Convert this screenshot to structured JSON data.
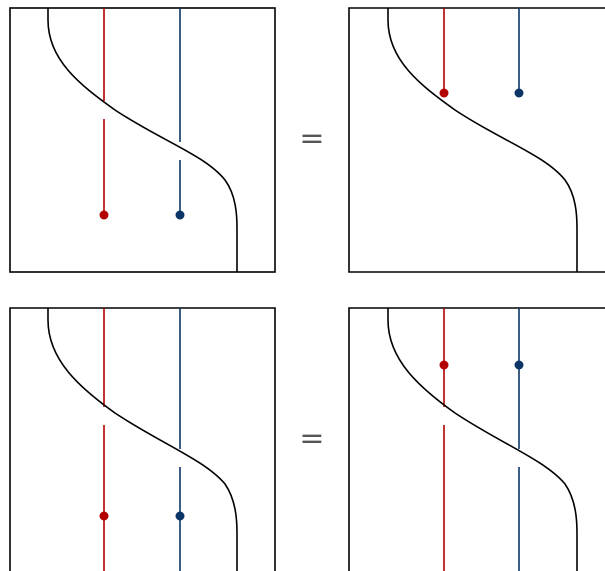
{
  "equations": [
    {
      "sign": "=",
      "lhs": {
        "red_line": "through",
        "blue_line": "through",
        "red_dot": "below-crossing",
        "blue_dot": "below-crossing",
        "lines_extend_below_dots": false
      },
      "rhs": {
        "red_line": "ends-at-dot",
        "blue_line": "ends-at-dot",
        "red_dot": "above-crossing",
        "blue_dot": "above-crossing",
        "lines_extend_below_dots": false
      }
    },
    {
      "sign": "=",
      "lhs": {
        "red_line": "through",
        "blue_line": "through",
        "red_dot": "below-crossing",
        "blue_dot": "below-crossing",
        "lines_extend_below_dots": true
      },
      "rhs": {
        "red_line": "through",
        "blue_line": "through",
        "red_dot": "above-crossing",
        "blue_dot": "above-crossing",
        "lines_extend_below_dots": true
      }
    }
  ],
  "colors": {
    "red": "#b30000",
    "blue": "#0b3566",
    "frame": "#000000",
    "curve": "#000000",
    "equals": "#555555"
  }
}
